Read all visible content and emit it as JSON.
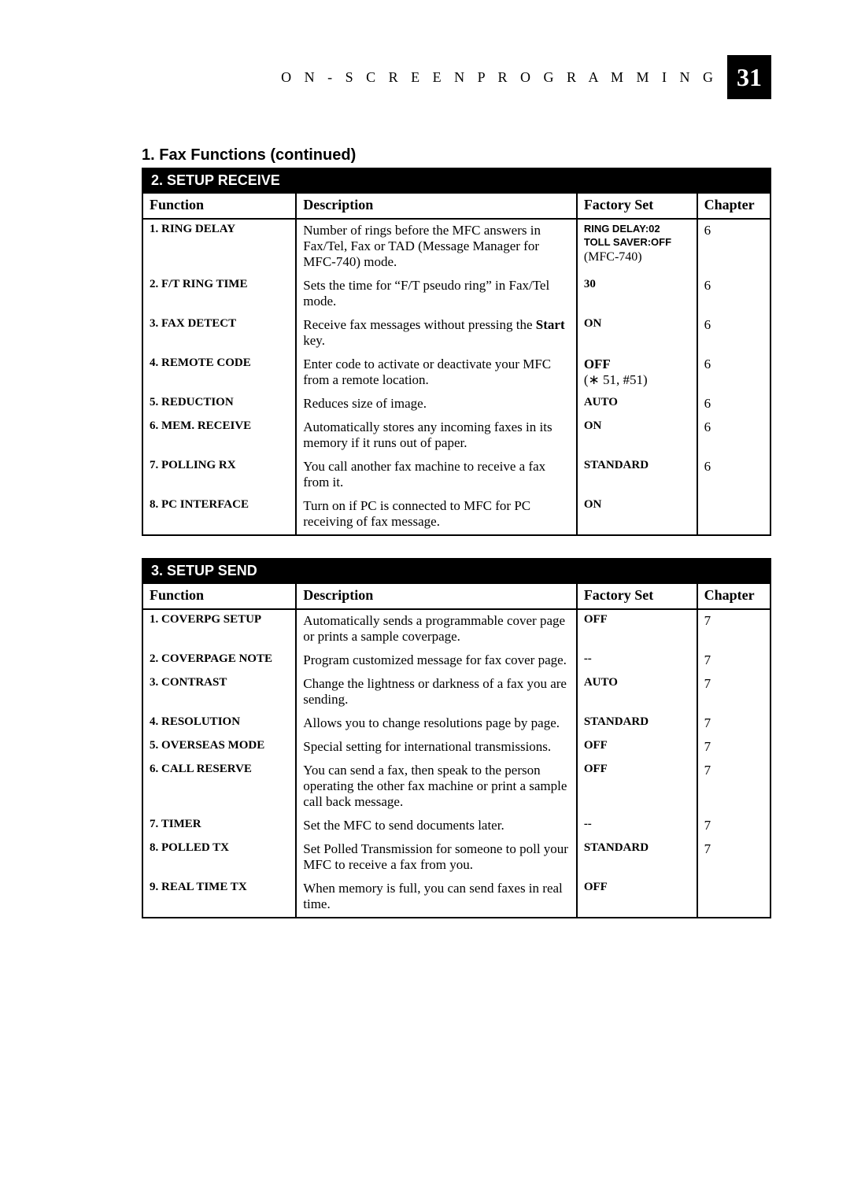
{
  "header": {
    "section_label": "O N - S C R E E N   P R O G R A M M I N G",
    "page_number": "31"
  },
  "title1": "1. Fax Functions (continued)",
  "table_receive": {
    "title": "2. SETUP RECEIVE",
    "cols": {
      "function": "Function",
      "description": "Description",
      "factory": "Factory Set",
      "chapter": "Chapter"
    },
    "rows": [
      {
        "fn": "1.  RING DELAY",
        "desc": "Number of rings before the MFC answers in Fax/Tel, Fax or TAD (Message Manager for MFC-740) mode.",
        "fs_lines": [
          "RING DELAY:02",
          "TOLL SAVER:OFF",
          "(MFC-740)"
        ],
        "ch": "6"
      },
      {
        "fn": "2.  F/T RING TIME",
        "desc": "Sets the time for “F/T pseudo ring” in Fax/Tel mode.",
        "fs": "30",
        "ch": "6"
      },
      {
        "fn": "3.  FAX DETECT",
        "desc_html": "Receive fax messages without pressing the <b>Start</b> key.",
        "fs": "ON",
        "ch": "6"
      },
      {
        "fn": "4.  REMOTE CODE",
        "desc": "Enter code to activate or deactivate your MFC from a remote location.",
        "fs_html": "<b>OFF</b><br>(∗ 51, #51)",
        "ch": "6"
      },
      {
        "fn": "5.  REDUCTION",
        "desc": "Reduces size of image.",
        "fs": "AUTO",
        "ch": "6"
      },
      {
        "fn": "6.  MEM. RECEIVE",
        "desc": "Automatically stores any incoming faxes in its memory if it runs out of paper.",
        "fs": "ON",
        "ch": "6"
      },
      {
        "fn": "7.  POLLING RX",
        "desc": "You call another fax machine to receive a fax from it.",
        "fs": "STANDARD",
        "ch": "6"
      },
      {
        "fn": "8.  PC INTERFACE",
        "desc": "Turn on if PC is connected to MFC for PC receiving of fax message.",
        "fs": "ON",
        "ch": ""
      }
    ]
  },
  "table_send": {
    "title": "3. SETUP SEND",
    "cols": {
      "function": "Function",
      "description": "Description",
      "factory": "Factory Set",
      "chapter": "Chapter"
    },
    "rows": [
      {
        "fn": "1.  COVERPG SETUP",
        "desc": "Automatically sends a programmable cover page or prints a sample coverpage.",
        "fs": "OFF",
        "ch": "7"
      },
      {
        "fn": "2.  COVERPAGE NOTE",
        "desc": "Program customized message for fax cover page.",
        "fs": "--",
        "ch": "7"
      },
      {
        "fn": "3.  CONTRAST",
        "desc": "Change the lightness or darkness of a fax you are sending.",
        "fs": "AUTO",
        "ch": "7"
      },
      {
        "fn": "4.  RESOLUTION",
        "desc": "Allows you to change resolutions page by page.",
        "fs": "STANDARD",
        "ch": "7"
      },
      {
        "fn": "5.  OVERSEAS MODE",
        "desc": "Special setting for international transmissions.",
        "fs": "OFF",
        "ch": "7"
      },
      {
        "fn": "6.  CALL RESERVE",
        "desc": "You can send a fax, then speak to the person operating the other fax machine or print a sample call back message.",
        "fs": "OFF",
        "ch": "7"
      },
      {
        "fn": "7.  TIMER",
        "desc": "Set the MFC to send documents later.",
        "fs": "--",
        "ch": "7"
      },
      {
        "fn": "8.  POLLED TX",
        "desc": "Set Polled Transmission for someone to poll your MFC to receive a fax from you.",
        "fs": "STANDARD",
        "ch": "7"
      },
      {
        "fn": "9.  REAL TIME TX",
        "desc": "When memory is full, you can send faxes in real time.",
        "fs": "OFF",
        "ch": ""
      }
    ]
  }
}
